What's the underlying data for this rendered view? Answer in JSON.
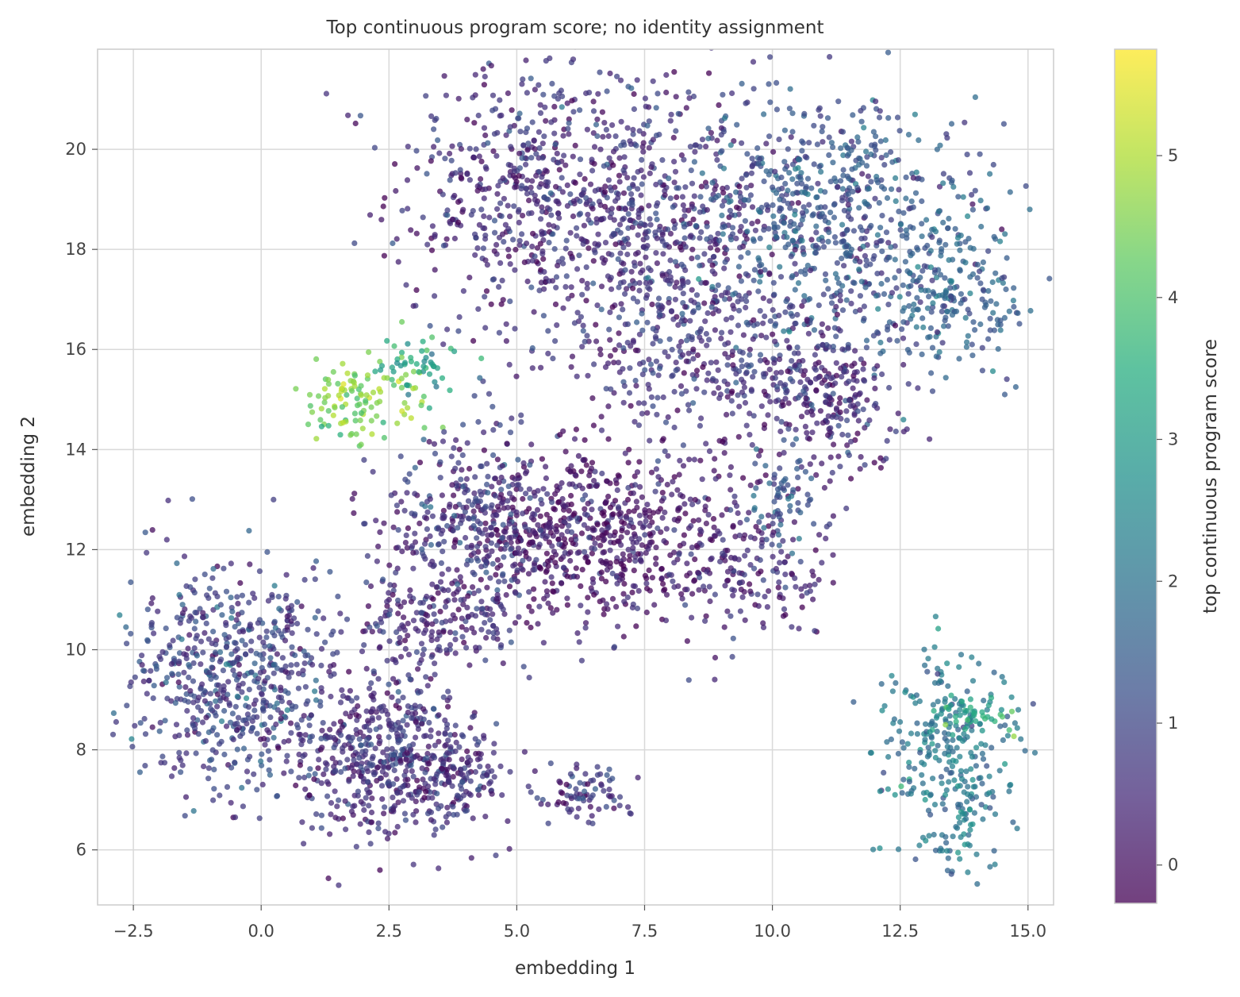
{
  "chart_data": {
    "type": "scatter",
    "title": "Top continuous program score; no identity assignment",
    "xlabel": "embedding 1",
    "ylabel": "embedding 2",
    "xlim": [
      -3.2,
      15.5
    ],
    "ylim": [
      4.9,
      22.0
    ],
    "xticks": [
      -2.5,
      0.0,
      2.5,
      5.0,
      7.5,
      10.0,
      12.5,
      15.0
    ],
    "xtick_labels": [
      "−2.5",
      "0.0",
      "2.5",
      "5.0",
      "7.5",
      "10.0",
      "12.5",
      "15.0"
    ],
    "yticks": [
      6,
      8,
      10,
      12,
      14,
      16,
      18,
      20
    ],
    "ytick_labels": [
      "6",
      "8",
      "10",
      "12",
      "14",
      "16",
      "18",
      "20"
    ],
    "grid": true,
    "colormap": "viridis",
    "colorbar": {
      "label": "top continuous program score",
      "range": [
        -0.27,
        5.75
      ],
      "ticks": [
        0,
        1,
        2,
        3,
        4,
        5
      ],
      "tick_labels": [
        "0",
        "1",
        "2",
        "3",
        "4",
        "5"
      ]
    },
    "clusters": [
      {
        "region": "upper-left large cluster",
        "center": [
          5.3,
          19.2
        ],
        "spread": [
          1.4,
          1.3
        ],
        "score": 0.5,
        "count": 500
      },
      {
        "region": "upper large cluster",
        "center": [
          7.8,
          18.2
        ],
        "spread": [
          1.6,
          1.6
        ],
        "score": 0.6,
        "count": 650
      },
      {
        "region": "upper-right large cluster",
        "center": [
          11.2,
          18.8
        ],
        "spread": [
          1.4,
          1.2
        ],
        "score": 1.3,
        "count": 600
      },
      {
        "region": "far-right cluster",
        "center": [
          13.5,
          17.0
        ],
        "spread": [
          0.8,
          0.8
        ],
        "score": 1.6,
        "count": 220
      },
      {
        "region": "center mid cluster",
        "center": [
          9.2,
          15.7
        ],
        "spread": [
          1.4,
          0.9
        ],
        "score": 0.6,
        "count": 320
      },
      {
        "region": "right mid cluster",
        "center": [
          11.3,
          15.0
        ],
        "spread": [
          0.7,
          0.7
        ],
        "score": 0.4,
        "count": 200
      },
      {
        "region": "left-bright cluster",
        "center": [
          1.9,
          15.0
        ],
        "spread": [
          0.6,
          0.4
        ],
        "score": 4.5,
        "count": 110
      },
      {
        "region": "left-bright cluster tail",
        "center": [
          3.0,
          15.7
        ],
        "spread": [
          0.4,
          0.35
        ],
        "score": 3.2,
        "count": 50
      },
      {
        "region": "central dense cluster",
        "center": [
          6.4,
          12.3
        ],
        "spread": [
          1.3,
          0.9
        ],
        "score": 0.1,
        "count": 650
      },
      {
        "region": "central left cluster",
        "center": [
          4.0,
          12.7
        ],
        "spread": [
          0.9,
          0.8
        ],
        "score": 0.7,
        "count": 300
      },
      {
        "region": "arc right",
        "center": [
          9.5,
          11.6
        ],
        "spread": [
          0.9,
          0.7
        ],
        "score": 0.4,
        "count": 180
      },
      {
        "region": "arc tail",
        "center": [
          10.2,
          13.0
        ],
        "spread": [
          0.3,
          0.6
        ],
        "score": 1.4,
        "count": 60
      },
      {
        "region": "bridge",
        "center": [
          3.4,
          10.6
        ],
        "spread": [
          0.9,
          0.5
        ],
        "score": 0.5,
        "count": 200
      },
      {
        "region": "lower-left cluster",
        "center": [
          -0.6,
          9.5
        ],
        "spread": [
          1.0,
          1.1
        ],
        "score": 0.9,
        "count": 600
      },
      {
        "region": "lower-middle cluster",
        "center": [
          2.4,
          7.9
        ],
        "spread": [
          0.9,
          0.8
        ],
        "score": 0.6,
        "count": 500
      },
      {
        "region": "lower-middle right arm",
        "center": [
          3.8,
          7.6
        ],
        "spread": [
          0.4,
          0.6
        ],
        "score": 0.6,
        "count": 140
      },
      {
        "region": "small bottom cluster",
        "center": [
          6.2,
          7.1
        ],
        "spread": [
          0.5,
          0.3
        ],
        "score": 0.6,
        "count": 80
      },
      {
        "region": "bottom-right cluster",
        "center": [
          13.4,
          8.2
        ],
        "spread": [
          0.7,
          0.8
        ],
        "score": 2.0,
        "count": 220
      },
      {
        "region": "bottom-right bright band",
        "center": [
          14.0,
          8.7
        ],
        "spread": [
          0.5,
          0.2
        ],
        "score": 3.3,
        "count": 50
      },
      {
        "region": "bottom-right lower tail",
        "center": [
          13.6,
          6.5
        ],
        "spread": [
          0.4,
          0.5
        ],
        "score": 2.1,
        "count": 80
      }
    ]
  }
}
